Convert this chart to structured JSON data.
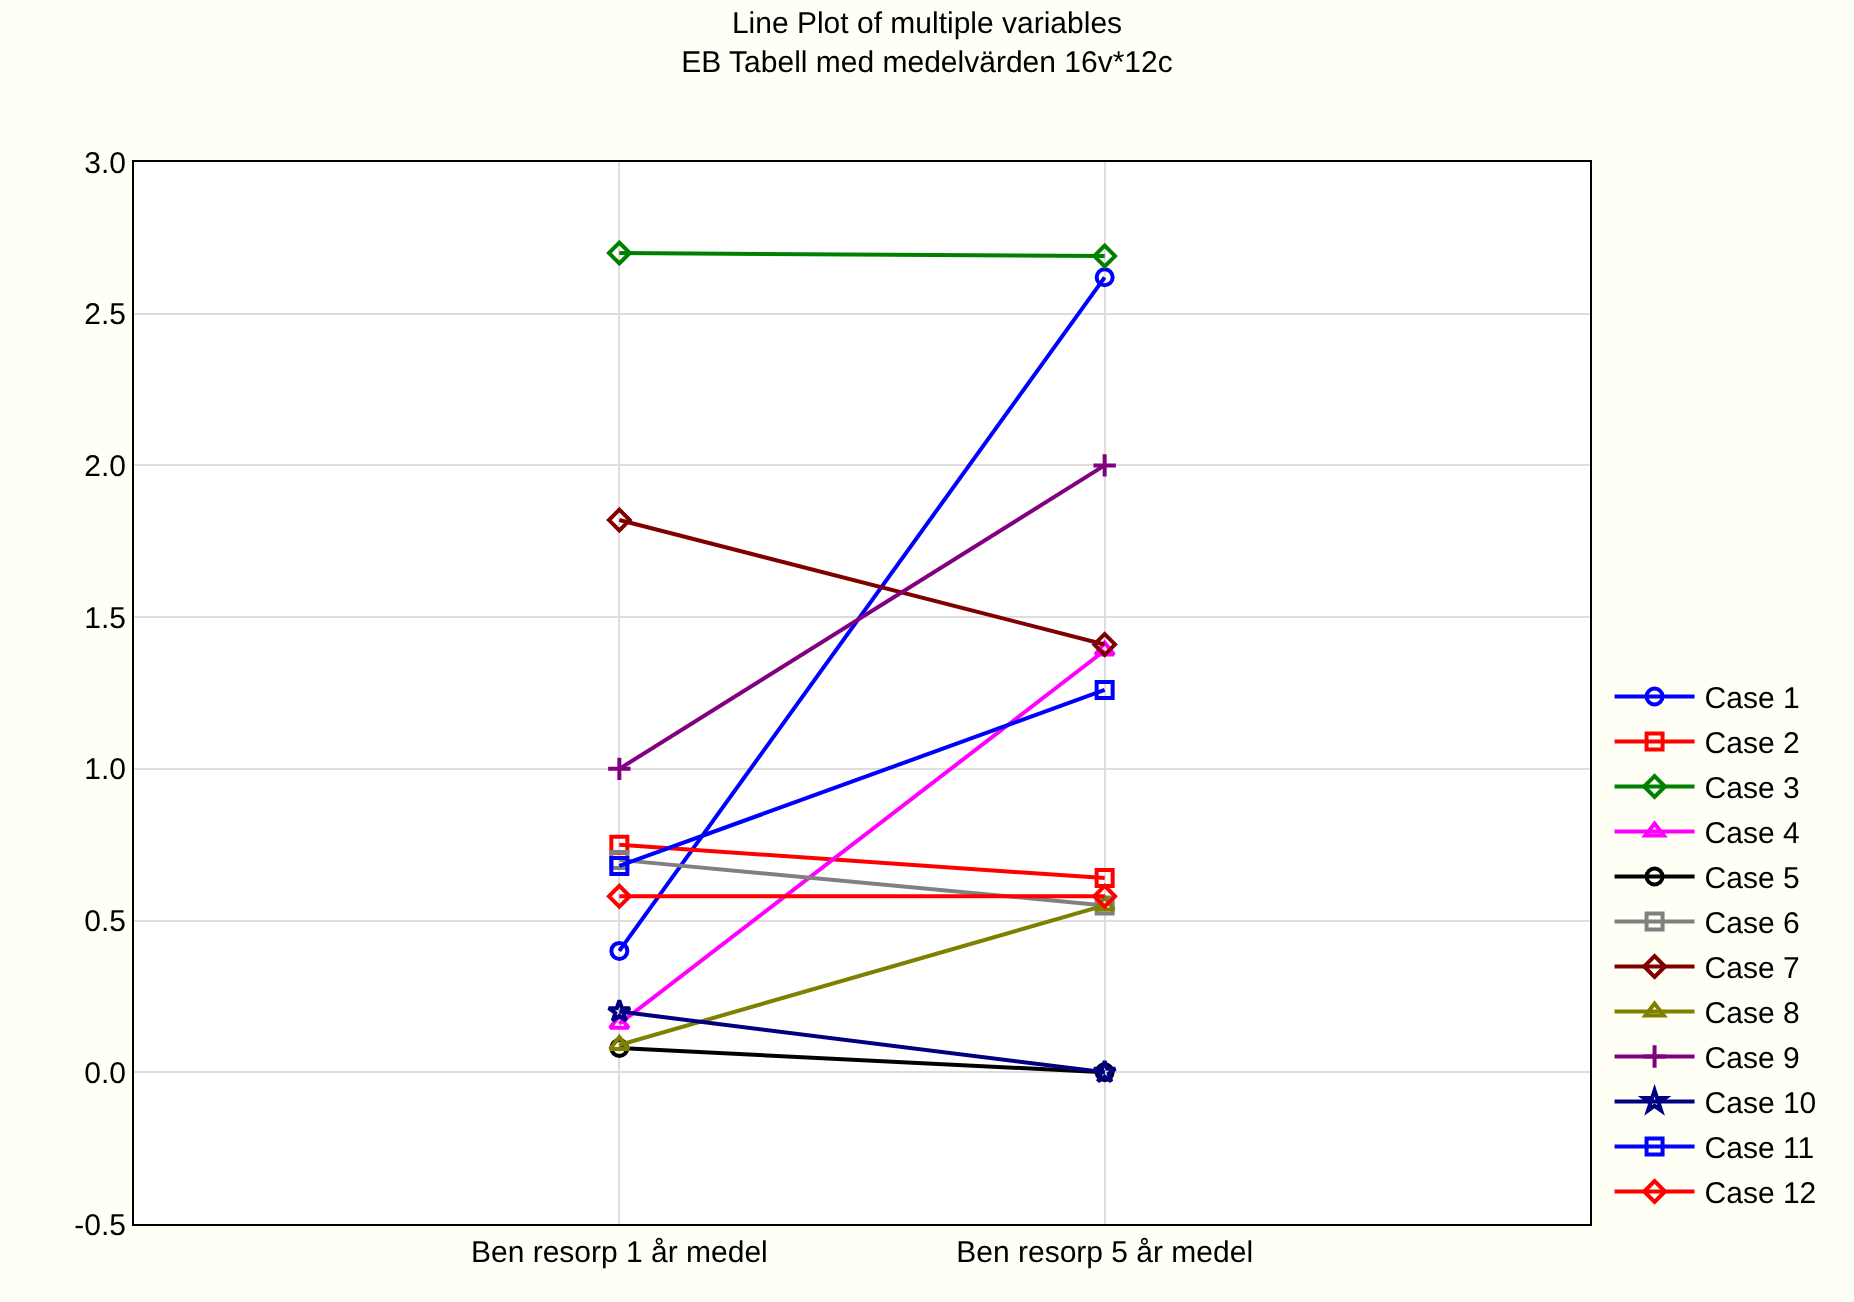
{
  "chart_data": {
    "type": "line",
    "title": "Line Plot of multiple variables",
    "subtitle": "EB Tabell med medelvärden 16v*12c",
    "categories": [
      "Ben resorp 1 år medel",
      "Ben resorp 5 år medel"
    ],
    "ylim": [
      -0.5,
      3.0
    ],
    "yticks": [
      {
        "value": -0.5,
        "label": "-0.5"
      },
      {
        "value": 0,
        "label": "0.0"
      },
      {
        "value": 0.5,
        "label": "0.5"
      },
      {
        "value": 1,
        "label": "1.0"
      },
      {
        "value": 1.5,
        "label": "1.5"
      },
      {
        "value": 2,
        "label": "2.0"
      },
      {
        "value": 2.5,
        "label": "2.5"
      },
      {
        "value": 3,
        "label": "3.0"
      }
    ],
    "grid": true,
    "legend": "right",
    "line_style": "solid",
    "series": [
      {
        "name": "Case 1",
        "color": "#0000ff",
        "marker": "circle",
        "values": [
          0.4,
          2.62
        ]
      },
      {
        "name": "Case 2",
        "color": "#ff0000",
        "marker": "square",
        "values": [
          0.75,
          0.64
        ]
      },
      {
        "name": "Case 3",
        "color": "#008000",
        "marker": "diamond",
        "values": [
          2.7,
          2.69
        ]
      },
      {
        "name": "Case 4",
        "color": "#ff00ff",
        "marker": "triangle",
        "values": [
          0.16,
          1.39
        ]
      },
      {
        "name": "Case 5",
        "color": "#000000",
        "marker": "circle",
        "values": [
          0.08,
          0.0
        ]
      },
      {
        "name": "Case 6",
        "color": "#808080",
        "marker": "square",
        "values": [
          0.7,
          0.55
        ]
      },
      {
        "name": "Case 7",
        "color": "#800000",
        "marker": "diamond",
        "values": [
          1.82,
          1.41
        ]
      },
      {
        "name": "Case 8",
        "color": "#808000",
        "marker": "triangle",
        "values": [
          0.09,
          0.55
        ]
      },
      {
        "name": "Case 9",
        "color": "#800080",
        "marker": "cross",
        "values": [
          1.0,
          2.0
        ]
      },
      {
        "name": "Case 10",
        "color": "#000080",
        "marker": "star",
        "values": [
          0.2,
          0.0
        ]
      },
      {
        "name": "Case 11",
        "color": "#0000ff",
        "marker": "square",
        "values": [
          0.68,
          1.26
        ]
      },
      {
        "name": "Case 12",
        "color": "#ff0000",
        "marker": "diamond",
        "values": [
          0.58,
          0.58
        ]
      }
    ]
  }
}
